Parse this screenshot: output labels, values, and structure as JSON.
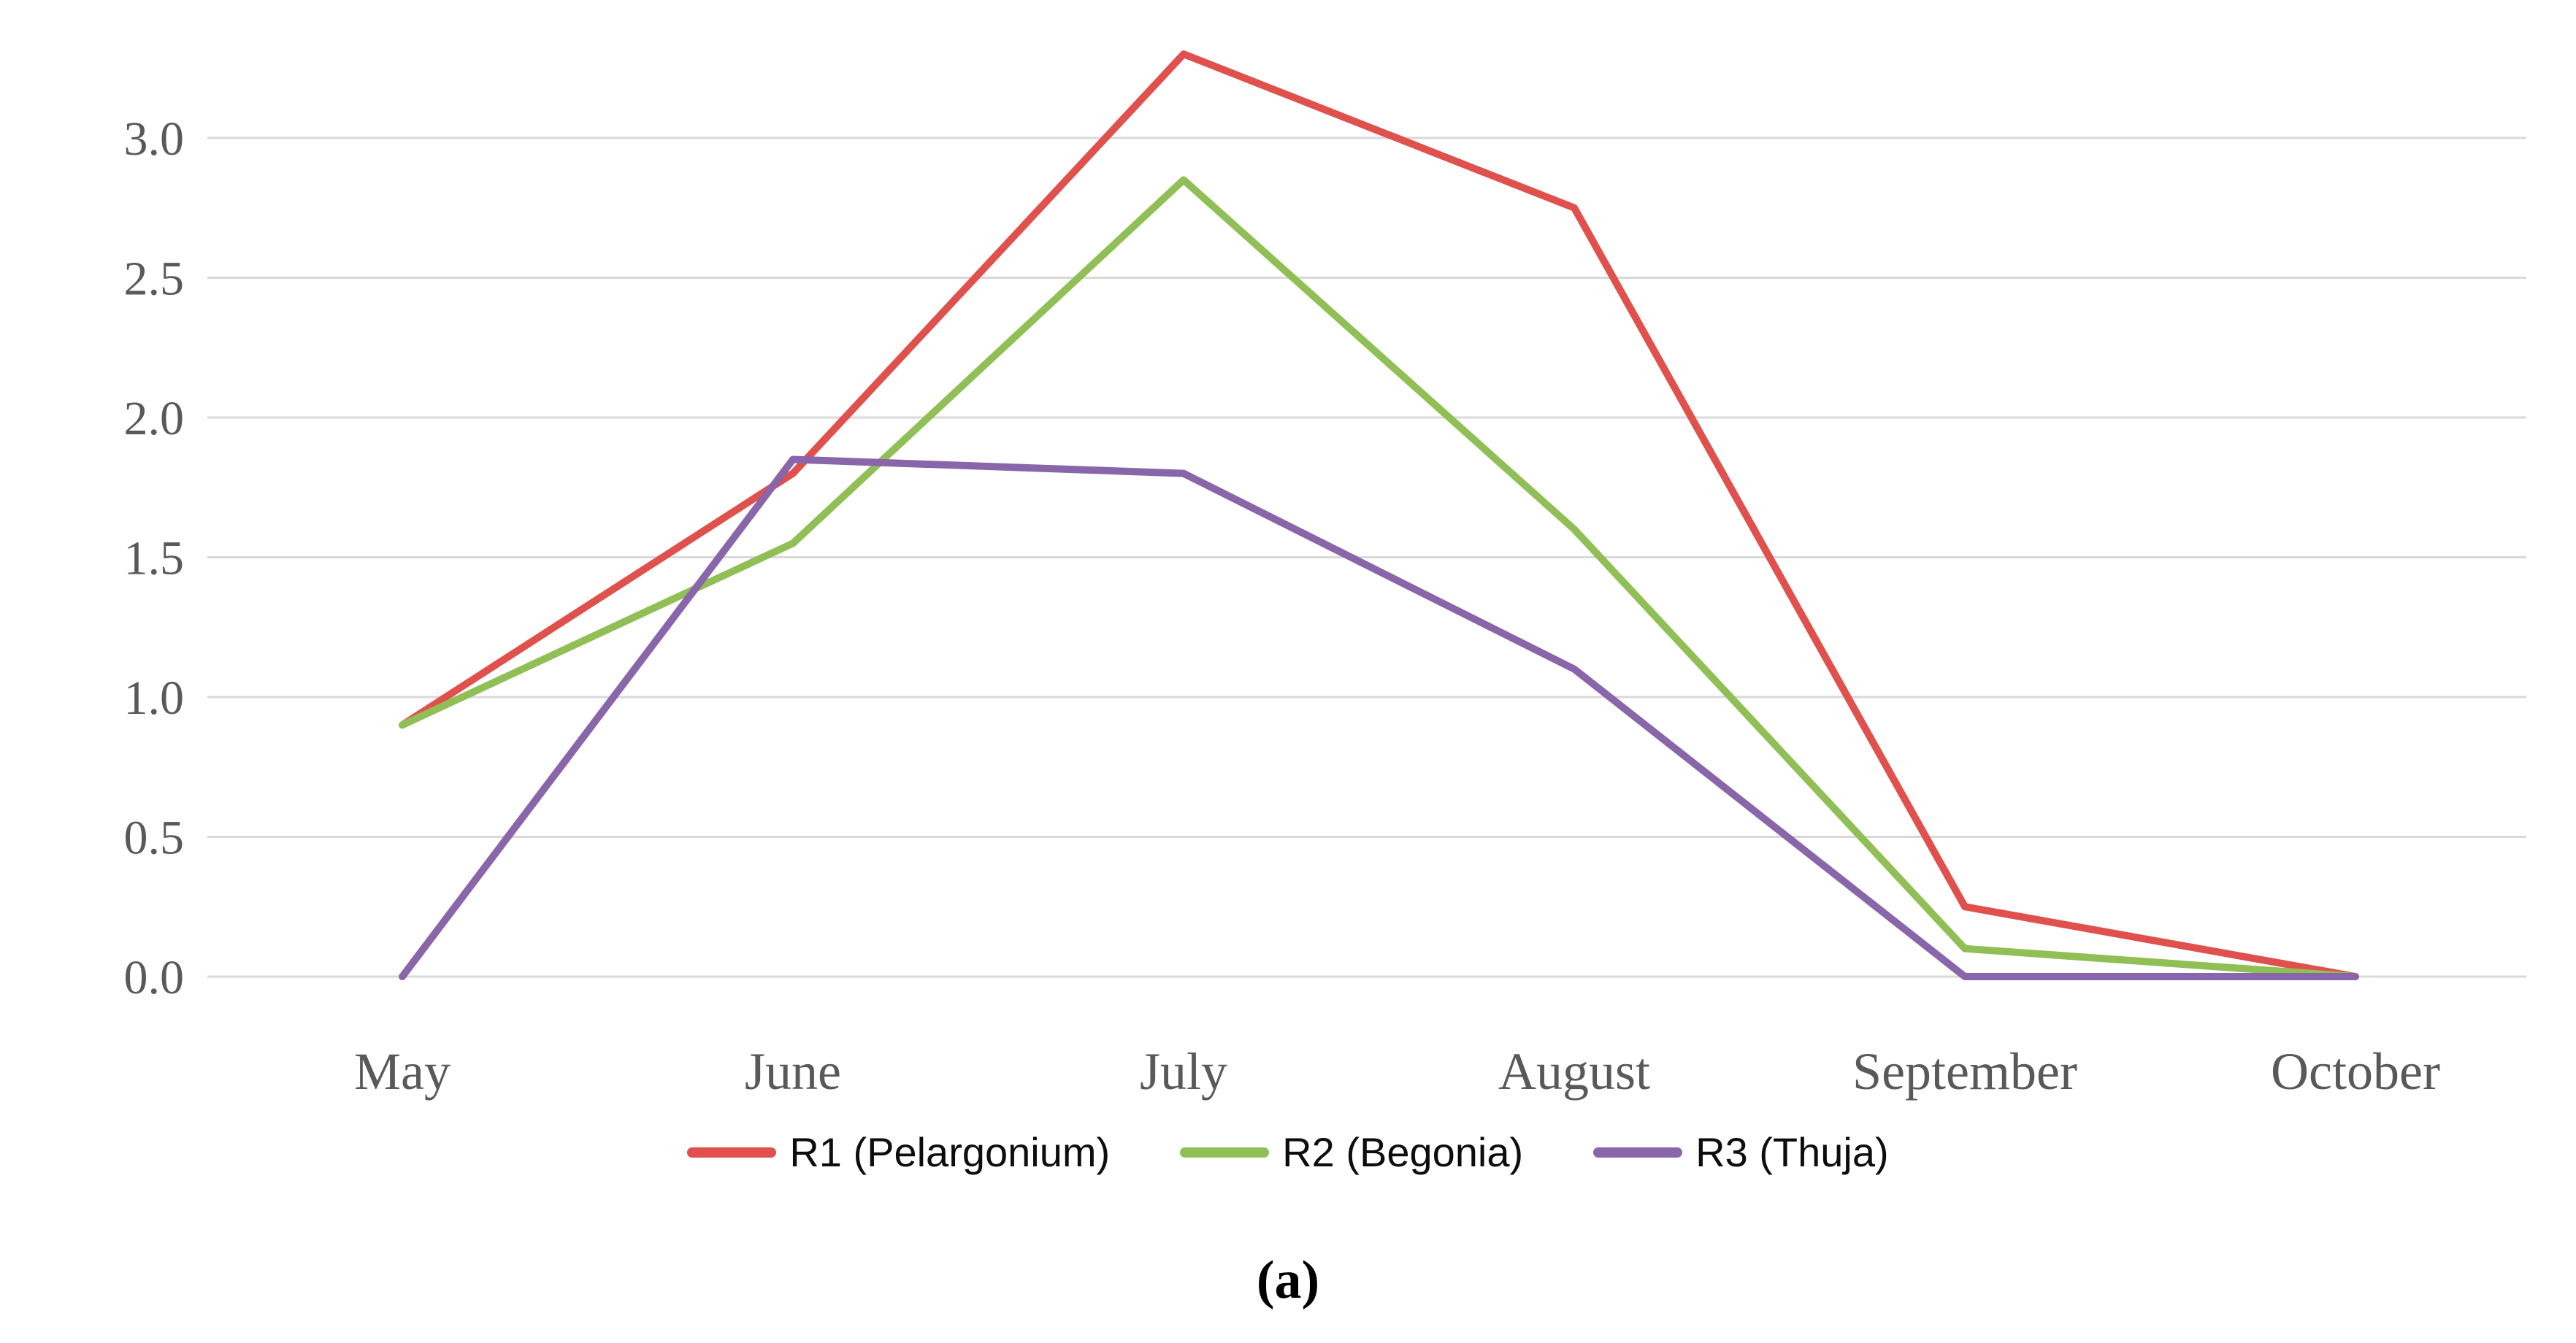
{
  "figure": {
    "caption": "(a)"
  },
  "chart_data": {
    "type": "line",
    "title": "",
    "categories": [
      "May",
      "June",
      "July",
      "August",
      "September",
      "October"
    ],
    "series": [
      {
        "name": "R1 (Pelargonium)",
        "color": "#E0504C",
        "values": [
          0.9,
          1.8,
          3.3,
          2.75,
          0.25,
          0.0
        ]
      },
      {
        "name": "R2 (Begonia)",
        "color": "#90BF55",
        "values": [
          0.9,
          1.55,
          2.85,
          1.6,
          0.1,
          0.0
        ]
      },
      {
        "name": "R3 (Thuja)",
        "color": "#8866A9",
        "values": [
          0.0,
          1.85,
          1.8,
          1.1,
          0.0,
          0.0
        ]
      }
    ],
    "xlabel": "",
    "ylabel": "",
    "y_ticks": [
      "0.0",
      "0.5",
      "1.0",
      "1.5",
      "2.0",
      "2.5",
      "3.0"
    ],
    "ylim": [
      0,
      3.45
    ],
    "grid": "horizontal",
    "legend_position": "bottom",
    "colors": {
      "gridline": "#D9D9D9",
      "axis_text": "#595959",
      "legend_text": "#0d0d0d",
      "background": "#FFFFFF"
    }
  }
}
